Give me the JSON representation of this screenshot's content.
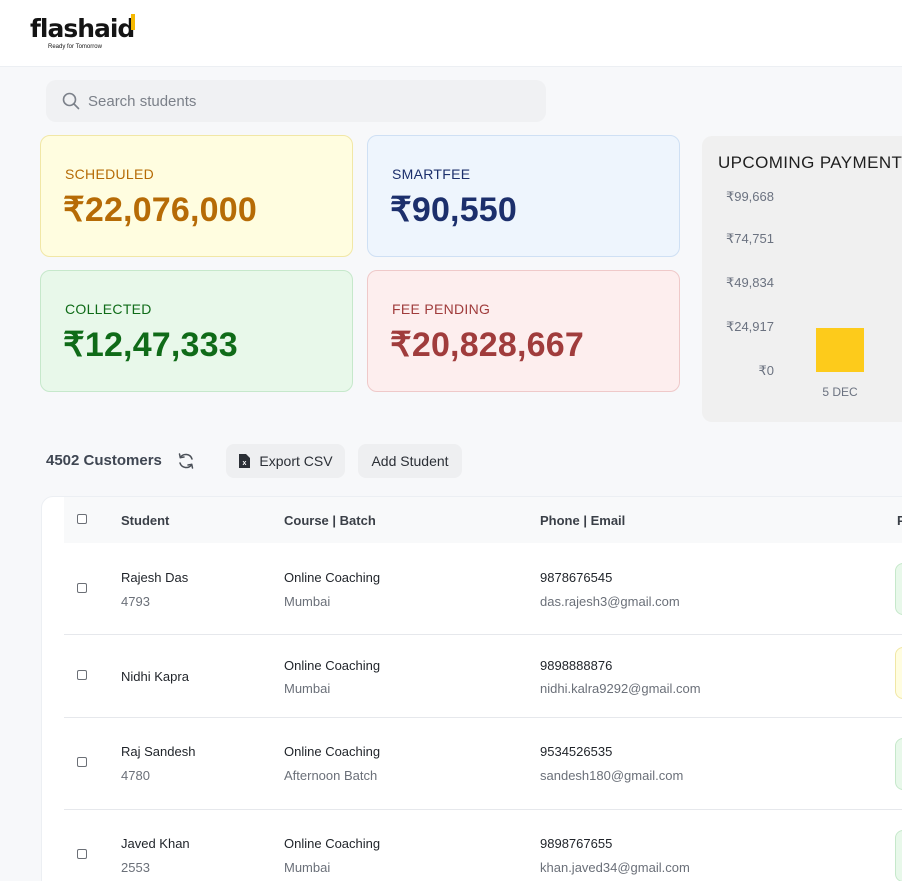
{
  "brand": {
    "name": "flashaid",
    "tagline": "Ready for Tomorrow"
  },
  "search": {
    "placeholder": "Search students",
    "value": ""
  },
  "stats": [
    {
      "label": "SCHEDULED",
      "value": "₹22,076,000"
    },
    {
      "label": "SMARTFEE",
      "value": "₹90,550"
    },
    {
      "label": "COLLECTED",
      "value": "₹12,47,333"
    },
    {
      "label": "FEE PENDING",
      "value": "₹20,828,667"
    }
  ],
  "chart_data": {
    "type": "bar",
    "title": "UPCOMING PAYMENT",
    "categories": [
      "5 DEC"
    ],
    "values": [
      24917
    ],
    "yticks": [
      "₹99,668",
      "₹74,751",
      "₹49,834",
      "₹24,917",
      "₹0"
    ],
    "ylim": [
      0,
      99668
    ],
    "color": "#fdcb1b"
  },
  "toolbar": {
    "count_label": "4502 Customers",
    "export_label": "Export CSV",
    "add_label": "Add Student"
  },
  "table": {
    "headers": [
      "Student",
      "Course | Batch",
      "Phone | Email",
      "P"
    ],
    "rows": [
      {
        "name": "Rajesh Das",
        "id": "4793",
        "course": "Online Coaching",
        "batch": "Mumbai",
        "phone": "9878676545",
        "email": "das.rajesh3@gmail.com",
        "status_color": "#e8f8ea"
      },
      {
        "name": "Nidhi Kapra",
        "id": "",
        "course": "Online Coaching",
        "batch": "Mumbai",
        "phone": "9898888876",
        "email": "nidhi.kalra9292@gmail.com",
        "status_color": "#fffde0"
      },
      {
        "name": "Raj Sandesh",
        "id": "4780",
        "course": "Online Coaching",
        "batch": "Afternoon Batch",
        "phone": "9534526535",
        "email": "sandesh180@gmail.com",
        "status_color": "#e8f8ea"
      },
      {
        "name": "Javed Khan",
        "id": "2553",
        "course": "Online Coaching",
        "batch": "Mumbai",
        "phone": "9898767655",
        "email": "khan.javed34@gmail.com",
        "status_color": "#e8f8ea"
      }
    ]
  }
}
